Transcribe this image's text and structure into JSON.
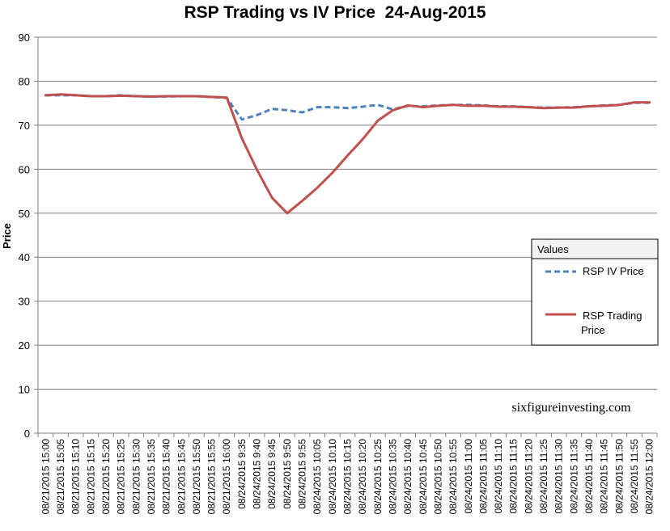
{
  "chart_data": {
    "type": "line",
    "title": "RSP Trading vs IV Price  24-Aug-2015",
    "ylabel": "Price",
    "xlabel": "",
    "ylim": [
      0,
      90
    ],
    "yticks": [
      0,
      10,
      20,
      30,
      40,
      50,
      60,
      70,
      80,
      90
    ],
    "grid": true,
    "legend_title": "Values",
    "legend_position": "right",
    "watermark": "sixfigureinvesting.com",
    "categories": [
      "08/21/2015 15:00",
      "08/21/2015 15:05",
      "08/21/2015 15:10",
      "08/21/2015 15:15",
      "08/21/2015 15:20",
      "08/21/2015 15:25",
      "08/21/2015 15:30",
      "08/21/2015 15:35",
      "08/21/2015 15:40",
      "08/21/2015 15:45",
      "08/21/2015 15:50",
      "08/21/2015 15:55",
      "08/21/2015 16:00",
      "08/24/2015 9:35",
      "08/24/2015 9:40",
      "08/24/2015 9:45",
      "08/24/2015 9:50",
      "08/24/2015 9:55",
      "08/24/2015 10:05",
      "08/24/2015 10:10",
      "08/24/2015 10:15",
      "08/24/2015 10:20",
      "08/24/2015 10:25",
      "08/24/2015 10:35",
      "08/24/2015 10:40",
      "08/24/2015 10:45",
      "08/24/2015 10:50",
      "08/24/2015 10:55",
      "08/24/2015 11:00",
      "08/24/2015 11:05",
      "08/24/2015 11:10",
      "08/24/2015 11:15",
      "08/24/2015 11:20",
      "08/24/2015 11:25",
      "08/24/2015 11:30",
      "08/24/2015 11:35",
      "08/24/2015 11:40",
      "08/24/2015 11:45",
      "08/24/2015 11:50",
      "08/24/2015 11:55",
      "08/24/2015 12:00"
    ],
    "series": [
      {
        "name": "RSP IV Price",
        "color": "#4F81BD",
        "dash": "dashed",
        "values": [
          76.8,
          76.8,
          76.8,
          76.6,
          76.6,
          76.8,
          76.6,
          76.5,
          76.5,
          76.6,
          76.6,
          76.4,
          76.2,
          71.3,
          72.3,
          73.7,
          73.4,
          72.9,
          74.1,
          74.1,
          73.9,
          74.2,
          74.6,
          73.6,
          74.4,
          74.3,
          74.5,
          74.6,
          74.6,
          74.5,
          74.3,
          74.3,
          74.1,
          74.0,
          74.0,
          74.1,
          74.3,
          74.5,
          74.6,
          75.1,
          75.1
        ]
      },
      {
        "name": "RSP Trading Price",
        "color": "#C0504D",
        "dash": "solid",
        "values": [
          76.8,
          77.0,
          76.8,
          76.6,
          76.6,
          76.7,
          76.6,
          76.5,
          76.6,
          76.6,
          76.6,
          76.4,
          76.3,
          67.0,
          59.9,
          53.5,
          50.0,
          52.8,
          55.8,
          59.2,
          63.1,
          66.8,
          71.0,
          73.4,
          74.5,
          74.1,
          74.4,
          74.6,
          74.4,
          74.4,
          74.2,
          74.2,
          74.1,
          73.9,
          74.0,
          74.0,
          74.3,
          74.4,
          74.6,
          75.2,
          75.2
        ]
      }
    ]
  }
}
